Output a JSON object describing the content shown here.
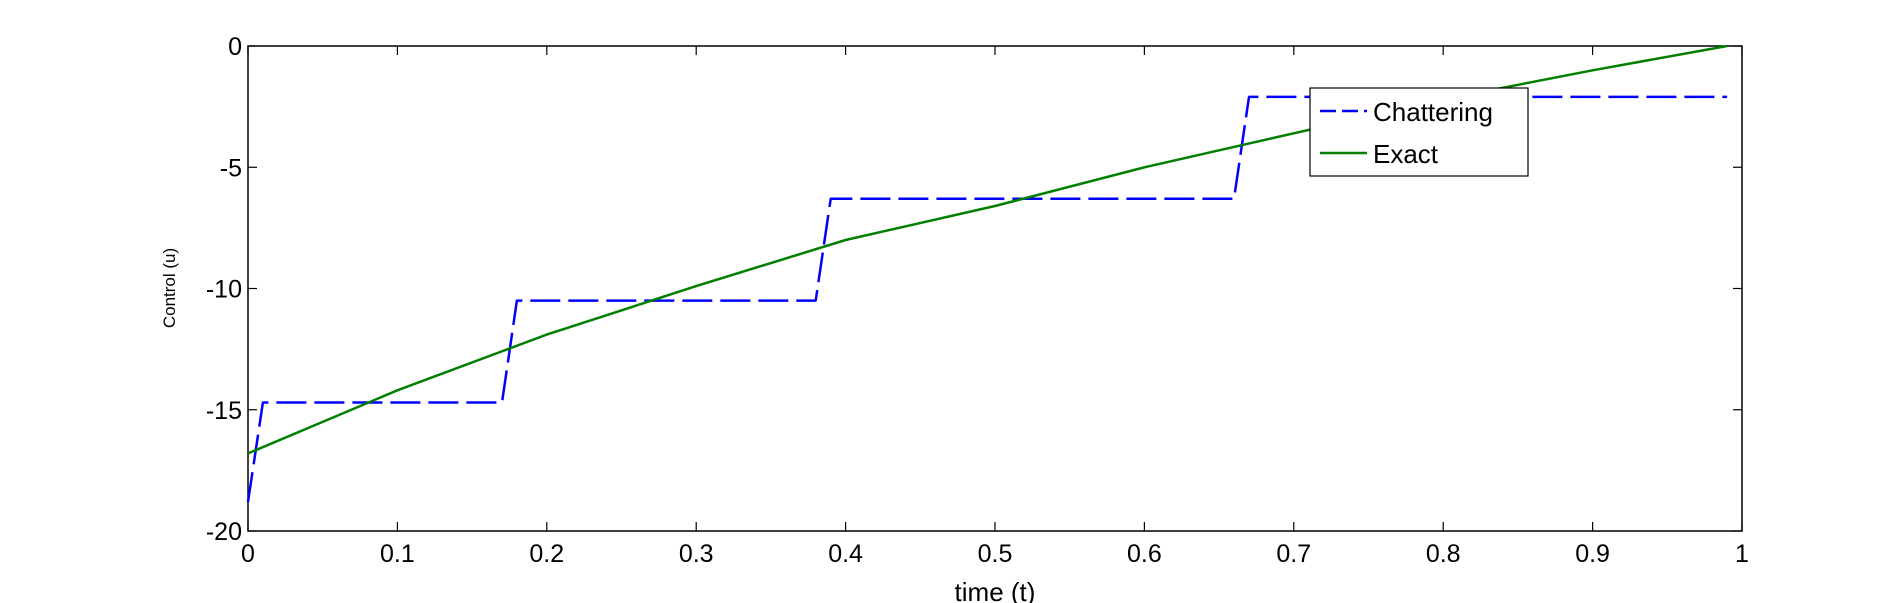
{
  "chart_data": {
    "type": "line",
    "xlabel": "time (t)",
    "ylabel": "Control (u)",
    "xlim": [
      0,
      1
    ],
    "ylim": [
      -20,
      0
    ],
    "xticks": [
      0,
      0.1,
      0.2,
      0.3,
      0.4,
      0.5,
      0.6,
      0.7,
      0.8,
      0.9,
      1
    ],
    "xtick_labels": [
      "0",
      "0.1",
      "0.2",
      "0.3",
      "0.4",
      "0.5",
      "0.6",
      "0.7",
      "0.8",
      "0.9",
      "1"
    ],
    "yticks": [
      0,
      -5,
      -10,
      -15,
      -20
    ],
    "ytick_labels": [
      "0",
      "-5",
      "-10",
      "-15",
      "-20"
    ],
    "grid": false,
    "legend_position": "top-right",
    "series": [
      {
        "name": "Chattering",
        "color": "#0000ff",
        "line_style": "dashed",
        "x": [
          0,
          0.01,
          0.17,
          0.18,
          0.38,
          0.39,
          0.66,
          0.67,
          0.99
        ],
        "y": [
          -18.8,
          -14.7,
          -14.7,
          -10.5,
          -10.5,
          -6.3,
          -6.3,
          -2.1,
          -2.1
        ]
      },
      {
        "name": "Exact",
        "color": "#007f00",
        "line_style": "solid",
        "x": [
          0,
          0.1,
          0.2,
          0.3,
          0.4,
          0.5,
          0.6,
          0.7,
          0.8,
          0.9,
          0.99
        ],
        "y": [
          -16.8,
          -14.2,
          -11.9,
          -9.9,
          -8.0,
          -6.6,
          -5.0,
          -3.6,
          -2.2,
          -1.0,
          0.0
        ]
      }
    ]
  }
}
